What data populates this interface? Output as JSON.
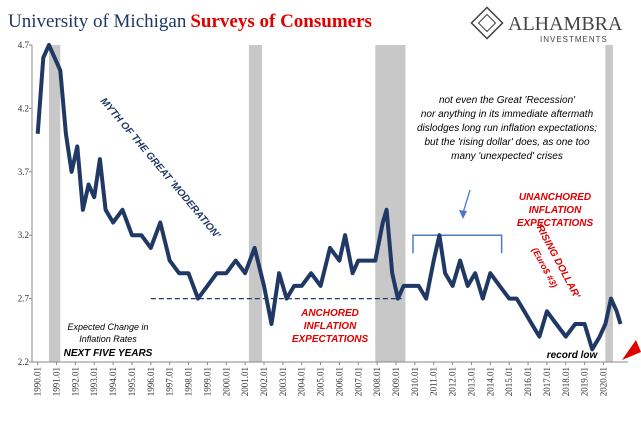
{
  "chart_data": {
    "type": "line",
    "title": {
      "part1": "University of Michigan",
      "part2": "Surveys of Consumers"
    },
    "logo": {
      "name": "ALHAMBRA",
      "sub": "INVESTMENTS"
    },
    "series": [
      {
        "name": "Expected Change in Inflation Rates Next Five Years",
        "color": "#1f3864",
        "x": [
          1990.0,
          1990.3,
          1990.6,
          1990.9,
          1991.2,
          1991.5,
          1991.8,
          1992.1,
          1992.4,
          1992.7,
          1993.0,
          1993.3,
          1993.6,
          1994.0,
          1994.5,
          1995.0,
          1995.5,
          1996.0,
          1996.5,
          1997.0,
          1997.5,
          1998.0,
          1998.5,
          1999.0,
          1999.5,
          2000.0,
          2000.5,
          2001.0,
          2001.5,
          2002.0,
          2002.4,
          2002.8,
          2003.2,
          2003.6,
          2004.0,
          2004.5,
          2005.0,
          2005.5,
          2006.0,
          2006.3,
          2006.7,
          2007.0,
          2007.5,
          2007.9,
          2008.3,
          2008.5,
          2008.8,
          2009.1,
          2009.4,
          2009.8,
          2010.2,
          2010.6,
          2011.0,
          2011.3,
          2011.6,
          2012.0,
          2012.4,
          2012.8,
          2013.2,
          2013.6,
          2014.0,
          2014.5,
          2015.0,
          2015.4,
          2015.8,
          2016.2,
          2016.6,
          2017.0,
          2017.5,
          2018.0,
          2018.5,
          2019.0,
          2019.4,
          2019.8,
          2020.1,
          2020.4,
          2020.7,
          2020.9
        ],
        "values": [
          4.0,
          4.6,
          4.7,
          4.6,
          4.5,
          4.0,
          3.7,
          3.9,
          3.4,
          3.6,
          3.5,
          3.8,
          3.4,
          3.3,
          3.4,
          3.2,
          3.2,
          3.1,
          3.3,
          3.0,
          2.9,
          2.9,
          2.7,
          2.8,
          2.9,
          2.9,
          3.0,
          2.9,
          3.1,
          2.8,
          2.5,
          2.9,
          2.7,
          2.8,
          2.8,
          2.9,
          2.8,
          3.1,
          3.0,
          3.2,
          2.9,
          3.0,
          3.0,
          3.0,
          3.3,
          3.4,
          2.9,
          2.7,
          2.8,
          2.8,
          2.8,
          2.7,
          3.0,
          3.2,
          2.9,
          2.8,
          3.0,
          2.8,
          2.9,
          2.7,
          2.9,
          2.8,
          2.7,
          2.7,
          2.6,
          2.5,
          2.4,
          2.6,
          2.5,
          2.4,
          2.5,
          2.5,
          2.3,
          2.4,
          2.5,
          2.7,
          2.6,
          2.5
        ]
      }
    ],
    "recessions": [
      [
        1990.6,
        1991.2
      ],
      [
        2001.2,
        2001.9
      ],
      [
        2007.9,
        2009.5
      ],
      [
        2020.1,
        2020.5
      ]
    ],
    "anchored_line": {
      "value": 2.7,
      "from": 1996.0,
      "to": 2009.3
    },
    "bracket": {
      "value": 3.2,
      "from": 2009.9,
      "to": 2014.6
    },
    "xlim": [
      1989.7,
      2021.3
    ],
    "ylim": [
      2.2,
      4.7
    ],
    "yticks": [
      2.2,
      2.7,
      3.2,
      3.7,
      4.2,
      4.7
    ],
    "xticks": [
      {
        "value": 1990,
        "label": "1990.01"
      },
      {
        "value": 1991,
        "label": "1991.01"
      },
      {
        "value": 1992,
        "label": "1992.01"
      },
      {
        "value": 1993,
        "label": "1993.01"
      },
      {
        "value": 1994,
        "label": "1994.01"
      },
      {
        "value": 1995,
        "label": "1995.01"
      },
      {
        "value": 1996,
        "label": "1996.01"
      },
      {
        "value": 1997,
        "label": "1997.01"
      },
      {
        "value": 1998,
        "label": "1998.01"
      },
      {
        "value": 1999,
        "label": "1999.01"
      },
      {
        "value": 2000,
        "label": "2000.01"
      },
      {
        "value": 2001,
        "label": "2001.01"
      },
      {
        "value": 2002,
        "label": "2002.01"
      },
      {
        "value": 2003,
        "label": "2003.01"
      },
      {
        "value": 2004,
        "label": "2004.01"
      },
      {
        "value": 2005,
        "label": "2005.01"
      },
      {
        "value": 2006,
        "label": "2006.01"
      },
      {
        "value": 2007,
        "label": "2007.01"
      },
      {
        "value": 2008,
        "label": "2008.01"
      },
      {
        "value": 2009,
        "label": "2009.01"
      },
      {
        "value": 2010,
        "label": "2010.01"
      },
      {
        "value": 2011,
        "label": "2011.01"
      },
      {
        "value": 2012,
        "label": "2012.01"
      },
      {
        "value": 2013,
        "label": "2013.01"
      },
      {
        "value": 2014,
        "label": "2014.01"
      },
      {
        "value": 2015,
        "label": "2015.01"
      },
      {
        "value": 2016,
        "label": "2016.01"
      },
      {
        "value": 2017,
        "label": "2017.01"
      },
      {
        "value": 2018,
        "label": "2018.01"
      },
      {
        "value": 2019,
        "label": "2019.01"
      },
      {
        "value": 2020,
        "label": "2020.01"
      }
    ],
    "annotations": {
      "myth": "MYTH OF THE GREAT 'MODERATION'",
      "recession_note": [
        "not even the Great 'Recession'",
        "nor anything in its immediate aftermath",
        "dislodges long run inflation expectations;",
        "but the 'rising dollar' does, as one too",
        "many 'unexpected' crises"
      ],
      "unanchored": [
        "UNANCHORED",
        "INFLATION",
        "EXPECTATIONS"
      ],
      "anchored": [
        "ANCHORED",
        "INFLATION",
        "EXPECTATIONS"
      ],
      "rising_dollar": [
        "'RISING DOLLAR'",
        "(Euro$ #3)"
      ],
      "legend": [
        "Expected Change in",
        "Inflation Rates"
      ],
      "legend_bold": "NEXT FIVE YEARS",
      "record_low": "record low"
    }
  }
}
